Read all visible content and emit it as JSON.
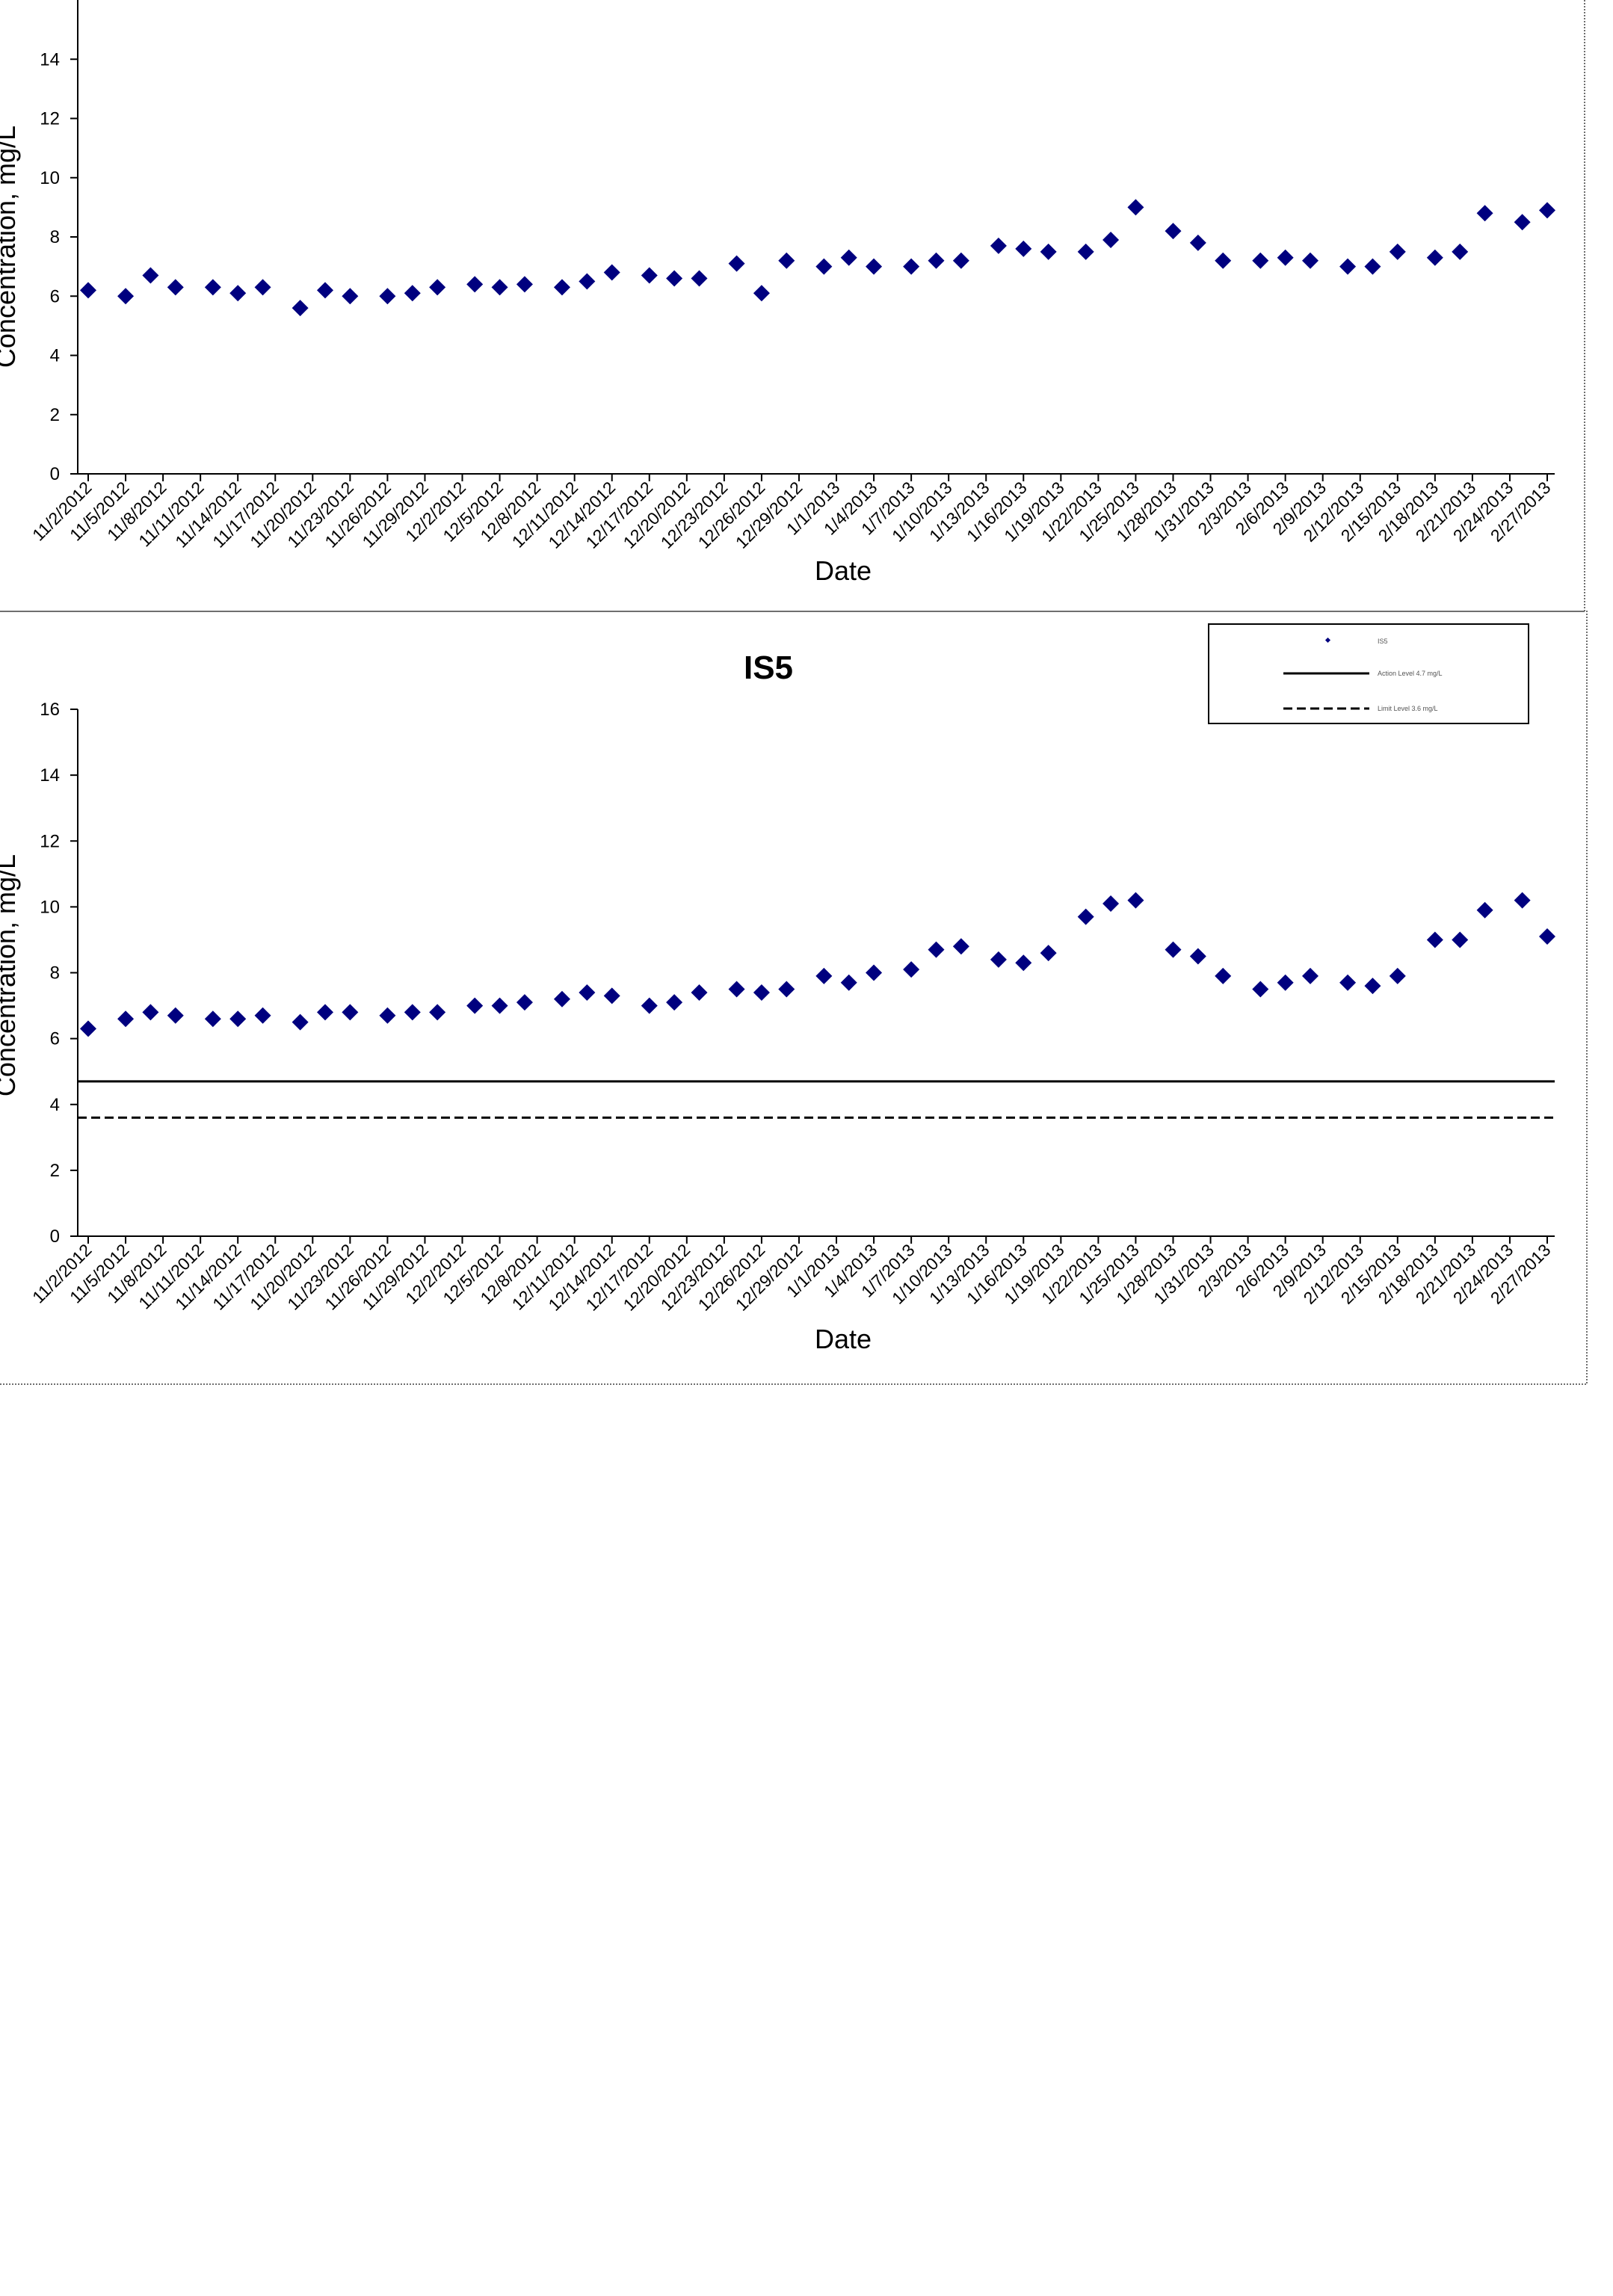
{
  "chart_data": [
    {
      "type": "scatter",
      "title": "",
      "xlabel": "Date",
      "ylabel": "Concentration, mg/L",
      "ylim": [
        0,
        16
      ],
      "yticks": [
        0,
        2,
        4,
        6,
        8,
        10,
        12,
        14
      ],
      "xticks": [
        "11/2/2012",
        "11/5/2012",
        "11/8/2012",
        "11/11/2012",
        "11/14/2012",
        "11/17/2012",
        "11/20/2012",
        "11/23/2012",
        "11/26/2012",
        "11/29/2012",
        "12/2/2012",
        "12/5/2012",
        "12/8/2012",
        "12/11/2012",
        "12/14/2012",
        "12/17/2012",
        "12/20/2012",
        "12/23/2012",
        "12/26/2012",
        "12/29/2012",
        "1/1/2013",
        "1/4/2013",
        "1/7/2013",
        "1/10/2013",
        "1/13/2013",
        "1/16/2013",
        "1/19/2013",
        "1/22/2013",
        "1/25/2013",
        "1/28/2013",
        "1/31/2013",
        "2/3/2013",
        "2/6/2013",
        "2/9/2013",
        "2/12/2013",
        "2/15/2013",
        "2/18/2013",
        "2/21/2013",
        "2/24/2013",
        "2/27/2013"
      ],
      "grid": false,
      "series": [
        {
          "color": "#00007F",
          "marker": "diamond",
          "points": [
            [
              "11/2/2012",
              6.2
            ],
            [
              "11/5/2012",
              6.0
            ],
            [
              "11/7/2012",
              6.7
            ],
            [
              "11/9/2012",
              6.3
            ],
            [
              "11/12/2012",
              6.3
            ],
            [
              "11/14/2012",
              6.1
            ],
            [
              "11/16/2012",
              6.3
            ],
            [
              "11/19/2012",
              5.6
            ],
            [
              "11/21/2012",
              6.2
            ],
            [
              "11/23/2012",
              6.0
            ],
            [
              "11/26/2012",
              6.0
            ],
            [
              "11/28/2012",
              6.1
            ],
            [
              "11/30/2012",
              6.3
            ],
            [
              "12/3/2012",
              6.4
            ],
            [
              "12/5/2012",
              6.3
            ],
            [
              "12/7/2012",
              6.4
            ],
            [
              "12/10/2012",
              6.3
            ],
            [
              "12/12/2012",
              6.5
            ],
            [
              "12/14/2012",
              6.8
            ],
            [
              "12/17/2012",
              6.7
            ],
            [
              "12/19/2012",
              6.6
            ],
            [
              "12/21/2012",
              6.6
            ],
            [
              "12/24/2012",
              7.1
            ],
            [
              "12/26/2012",
              6.1
            ],
            [
              "12/28/2012",
              7.2
            ],
            [
              "12/31/2012",
              7.0
            ],
            [
              "1/2/2013",
              7.3
            ],
            [
              "1/4/2013",
              7.0
            ],
            [
              "1/7/2013",
              7.0
            ],
            [
              "1/9/2013",
              7.2
            ],
            [
              "1/11/2013",
              7.2
            ],
            [
              "1/14/2013",
              7.7
            ],
            [
              "1/16/2013",
              7.6
            ],
            [
              "1/18/2013",
              7.5
            ],
            [
              "1/21/2013",
              7.5
            ],
            [
              "1/23/2013",
              7.9
            ],
            [
              "1/25/2013",
              9.0
            ],
            [
              "1/28/2013",
              8.2
            ],
            [
              "1/30/2013",
              7.8
            ],
            [
              "2/1/2013",
              7.2
            ],
            [
              "2/4/2013",
              7.2
            ],
            [
              "2/6/2013",
              7.3
            ],
            [
              "2/8/2013",
              7.2
            ],
            [
              "2/11/2013",
              7.0
            ],
            [
              "2/13/2013",
              7.0
            ],
            [
              "2/15/2013",
              7.5
            ],
            [
              "2/18/2013",
              7.3
            ],
            [
              "2/20/2013",
              7.5
            ],
            [
              "2/22/2013",
              8.8
            ],
            [
              "2/25/2013",
              8.5
            ],
            [
              "2/27/2013",
              8.9
            ]
          ]
        }
      ]
    },
    {
      "type": "scatter",
      "title": "IS5",
      "xlabel": "Date",
      "ylabel": "Concentration, mg/L",
      "ylim": [
        0,
        16
      ],
      "yticks": [
        0,
        2,
        4,
        6,
        8,
        10,
        12,
        14,
        16
      ],
      "xticks": [
        "11/2/2012",
        "11/5/2012",
        "11/8/2012",
        "11/11/2012",
        "11/14/2012",
        "11/17/2012",
        "11/20/2012",
        "11/23/2012",
        "11/26/2012",
        "11/29/2012",
        "12/2/2012",
        "12/5/2012",
        "12/8/2012",
        "12/11/2012",
        "12/14/2012",
        "12/17/2012",
        "12/20/2012",
        "12/23/2012",
        "12/26/2012",
        "12/29/2012",
        "1/1/2013",
        "1/4/2013",
        "1/7/2013",
        "1/10/2013",
        "1/13/2013",
        "1/16/2013",
        "1/19/2013",
        "1/22/2013",
        "1/25/2013",
        "1/28/2013",
        "1/31/2013",
        "2/3/2013",
        "2/6/2013",
        "2/9/2013",
        "2/12/2013",
        "2/15/2013",
        "2/18/2013",
        "2/21/2013",
        "2/24/2013",
        "2/27/2013"
      ],
      "grid": false,
      "legend": {
        "position": "top-right",
        "entries": [
          "IS5",
          "Action Level 4.7 mg/L",
          "Limit Level 3.6 mg/L"
        ]
      },
      "series": [
        {
          "name": "IS5",
          "color": "#00007F",
          "marker": "diamond",
          "points": [
            [
              "11/2/2012",
              6.3
            ],
            [
              "11/5/2012",
              6.6
            ],
            [
              "11/7/2012",
              6.8
            ],
            [
              "11/9/2012",
              6.7
            ],
            [
              "11/12/2012",
              6.6
            ],
            [
              "11/14/2012",
              6.6
            ],
            [
              "11/16/2012",
              6.7
            ],
            [
              "11/19/2012",
              6.5
            ],
            [
              "11/21/2012",
              6.8
            ],
            [
              "11/23/2012",
              6.8
            ],
            [
              "11/26/2012",
              6.7
            ],
            [
              "11/28/2012",
              6.8
            ],
            [
              "11/30/2012",
              6.8
            ],
            [
              "12/3/2012",
              7.0
            ],
            [
              "12/5/2012",
              7.0
            ],
            [
              "12/7/2012",
              7.1
            ],
            [
              "12/10/2012",
              7.2
            ],
            [
              "12/12/2012",
              7.4
            ],
            [
              "12/14/2012",
              7.3
            ],
            [
              "12/17/2012",
              7.0
            ],
            [
              "12/19/2012",
              7.1
            ],
            [
              "12/21/2012",
              7.4
            ],
            [
              "12/24/2012",
              7.5
            ],
            [
              "12/26/2012",
              7.4
            ],
            [
              "12/28/2012",
              7.5
            ],
            [
              "12/31/2012",
              7.9
            ],
            [
              "1/2/2013",
              7.7
            ],
            [
              "1/4/2013",
              8.0
            ],
            [
              "1/7/2013",
              8.1
            ],
            [
              "1/9/2013",
              8.7
            ],
            [
              "1/11/2013",
              8.8
            ],
            [
              "1/14/2013",
              8.4
            ],
            [
              "1/16/2013",
              8.3
            ],
            [
              "1/18/2013",
              8.6
            ],
            [
              "1/21/2013",
              9.7
            ],
            [
              "1/23/2013",
              10.1
            ],
            [
              "1/25/2013",
              10.2
            ],
            [
              "1/28/2013",
              8.7
            ],
            [
              "1/30/2013",
              8.5
            ],
            [
              "2/1/2013",
              7.9
            ],
            [
              "2/4/2013",
              7.5
            ],
            [
              "2/6/2013",
              7.7
            ],
            [
              "2/8/2013",
              7.9
            ],
            [
              "2/11/2013",
              7.7
            ],
            [
              "2/13/2013",
              7.6
            ],
            [
              "2/15/2013",
              7.9
            ],
            [
              "2/18/2013",
              9.0
            ],
            [
              "2/20/2013",
              9.0
            ],
            [
              "2/22/2013",
              9.9
            ],
            [
              "2/25/2013",
              10.2
            ],
            [
              "2/27/2013",
              9.1
            ]
          ]
        }
      ],
      "reference_lines": [
        {
          "name": "Action Level 4.7 mg/L",
          "value": 4.7,
          "style": "solid",
          "color": "#000000"
        },
        {
          "name": "Limit Level 3.6 mg/L",
          "value": 3.6,
          "style": "dashed",
          "color": "#000000"
        }
      ]
    }
  ]
}
